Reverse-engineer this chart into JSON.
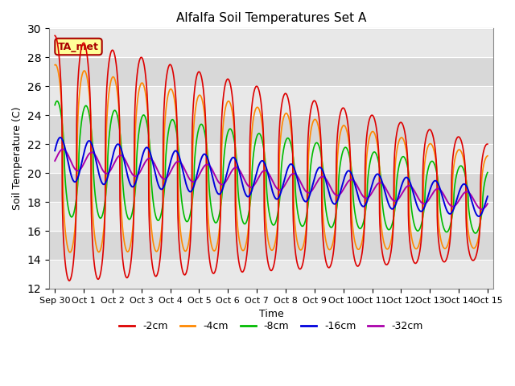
{
  "title": "Alfalfa Soil Temperatures Set A",
  "xlabel": "Time",
  "ylabel": "Soil Temperature (C)",
  "ylim": [
    12,
    30
  ],
  "yticks": [
    12,
    14,
    16,
    18,
    20,
    22,
    24,
    26,
    28,
    30
  ],
  "x_labels": [
    "Sep 30",
    "Oct 1",
    "Oct 2",
    "Oct 3",
    "Oct 4",
    "Oct 5",
    "Oct 6",
    "Oct 7",
    "Oct 8",
    "Oct 9",
    "Oct 10",
    "Oct 11",
    "Oct 12",
    "Oct 13",
    "Oct 14",
    "Oct 15"
  ],
  "colors": {
    "-2cm": "#dd0000",
    "-4cm": "#ff8800",
    "-8cm": "#00bb00",
    "-16cm": "#0000dd",
    "-32cm": "#aa00aa"
  },
  "fig_bg": "#ffffff",
  "plot_bg": "#e8e8e8",
  "band_colors": [
    "#e8e8e8",
    "#d8d8d8"
  ],
  "grid_color": "#ffffff",
  "ta_met_box_color": "#ffff99",
  "ta_met_text_color": "#aa0000",
  "ta_met_edge_color": "#aa0000",
  "legend_entries": [
    "-2cm",
    "-4cm",
    "-8cm",
    "-16cm",
    "-32cm"
  ],
  "title_fontsize": 11,
  "axis_fontsize": 9,
  "tick_fontsize": 8
}
